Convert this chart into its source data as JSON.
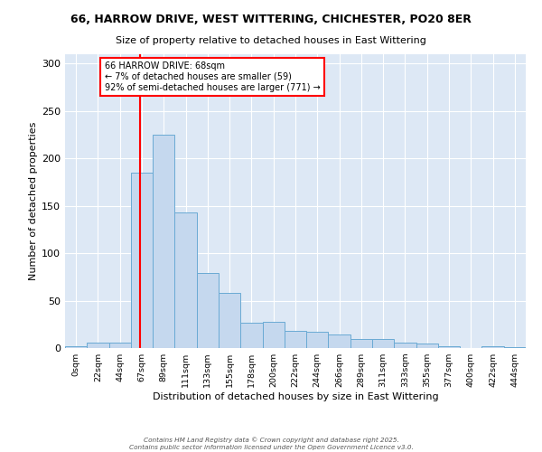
{
  "title1": "66, HARROW DRIVE, WEST WITTERING, CHICHESTER, PO20 8ER",
  "title2": "Size of property relative to detached houses in East Wittering",
  "xlabel": "Distribution of detached houses by size in East Wittering",
  "ylabel": "Number of detached properties",
  "bin_labels": [
    "0sqm",
    "22sqm",
    "44sqm",
    "67sqm",
    "89sqm",
    "111sqm",
    "133sqm",
    "155sqm",
    "178sqm",
    "200sqm",
    "222sqm",
    "244sqm",
    "266sqm",
    "289sqm",
    "311sqm",
    "333sqm",
    "355sqm",
    "377sqm",
    "400sqm",
    "422sqm",
    "444sqm"
  ],
  "bar_heights": [
    2,
    6,
    6,
    185,
    225,
    143,
    79,
    58,
    27,
    28,
    18,
    17,
    14,
    10,
    10,
    6,
    5,
    2,
    0,
    2,
    1
  ],
  "bar_color": "#c5d8ee",
  "bar_edge_color": "#6aaad4",
  "red_line_bin": 3,
  "annotation_text": "66 HARROW DRIVE: 68sqm\n← 7% of detached houses are smaller (59)\n92% of semi-detached houses are larger (771) →",
  "annotation_box_color": "white",
  "annotation_box_edge_color": "red",
  "ylim_max": 310,
  "yticks": [
    0,
    50,
    100,
    150,
    200,
    250,
    300
  ],
  "background_color": "#dde8f5",
  "grid_color": "white",
  "footer1": "Contains HM Land Registry data © Crown copyright and database right 2025.",
  "footer2": "Contains public sector information licensed under the Open Government Licence v3.0."
}
